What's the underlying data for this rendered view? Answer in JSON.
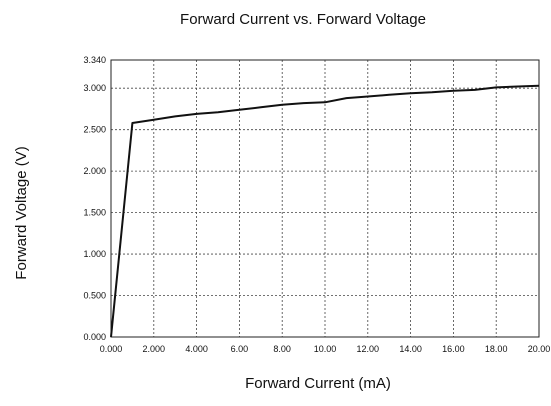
{
  "chart_data": {
    "type": "line",
    "title": "Forward Current vs. Forward Voltage",
    "xlabel": "Forward Current (mA)",
    "ylabel": "Forward Voltage  (V)",
    "xlim": [
      0,
      20
    ],
    "ylim": [
      0,
      3.34
    ],
    "x_ticks": [
      0,
      2,
      4,
      6,
      8,
      10,
      12,
      14,
      16,
      18,
      20
    ],
    "x_tick_labels": [
      "0.000",
      "2.000",
      "4.000",
      "6.00",
      "8.00",
      "10.00",
      "12.00",
      "14.00",
      "16.00",
      "18.00",
      "20.00"
    ],
    "y_ticks": [
      0,
      0.5,
      1.0,
      1.5,
      2.0,
      2.5,
      3.0,
      3.34
    ],
    "y_tick_labels": [
      "0.000",
      "0.500",
      "1.000",
      "1.500",
      "2.000",
      "2.500",
      "3.000",
      "3.340"
    ],
    "grid": true,
    "series": [
      {
        "x": [
          0,
          1,
          2,
          3,
          4,
          5,
          6,
          7,
          8,
          9,
          10,
          11,
          12,
          13,
          14,
          15,
          16,
          17,
          18,
          19,
          20
        ],
        "y": [
          0,
          2.58,
          2.62,
          2.66,
          2.69,
          2.71,
          2.74,
          2.77,
          2.8,
          2.82,
          2.83,
          2.88,
          2.9,
          2.92,
          2.94,
          2.95,
          2.97,
          2.98,
          3.01,
          3.02,
          3.03
        ]
      }
    ]
  }
}
